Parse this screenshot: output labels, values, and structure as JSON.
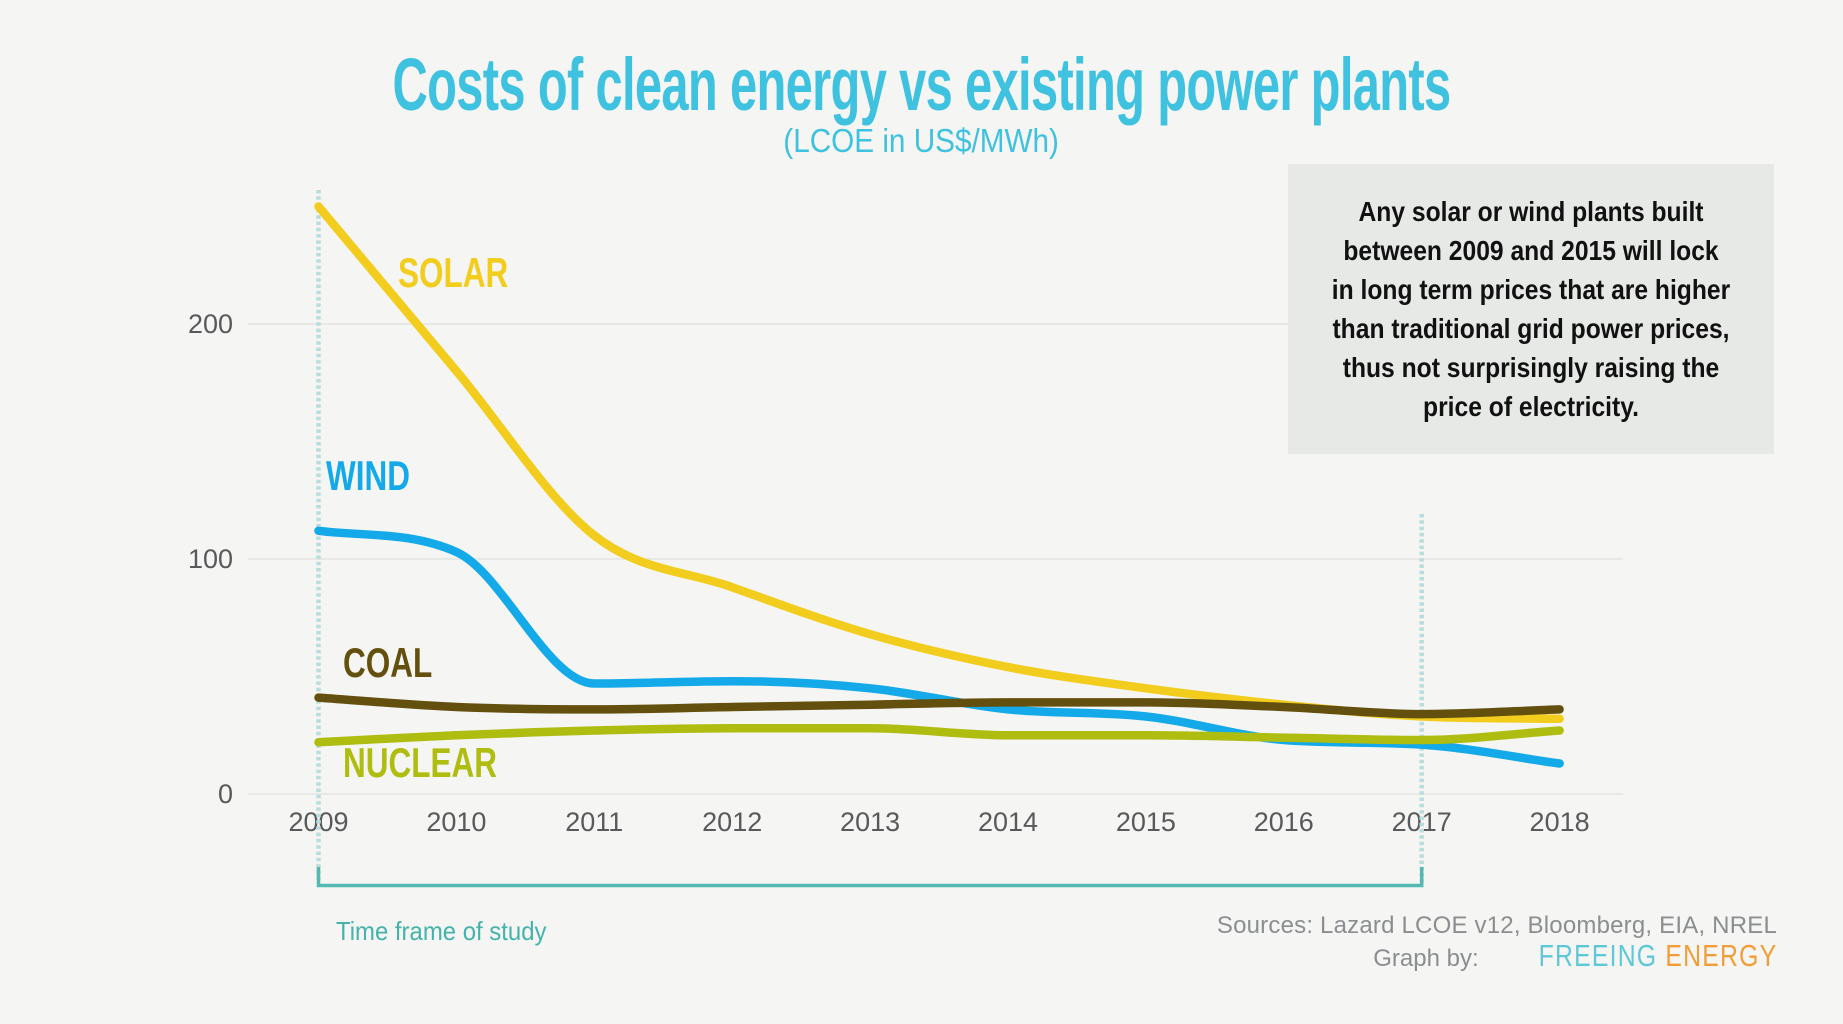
{
  "page": {
    "background": "#f5f5f3"
  },
  "header": {
    "title": "Costs of clean energy vs existing power plants",
    "subtitle": "(LCOE in US$/MWh)",
    "title_color": "#3fc1e0"
  },
  "annotation_box": {
    "background": "#e7e9e7",
    "text": "Any solar or wind plants built\nbetween 2009 and 2015 will lock\nin long term prices that are higher\nthan traditional grid power prices,\nthus not surprisingly raising the\nprice of electricity."
  },
  "footer": {
    "sources": "Sources: Lazard LCOE v12, Bloomberg, EIA, NREL",
    "graph_by": "Graph by:",
    "brand_word1": "FREEING",
    "brand_word1_color": "#5ec8d8",
    "brand_word2": "ENERGY",
    "brand_word2_color": "#f39d38"
  },
  "chart_data": {
    "type": "line",
    "title": "Costs of clean energy vs existing power plants",
    "subtitle": "(LCOE in US$/MWh)",
    "x": [
      2009,
      2010,
      2011,
      2012,
      2013,
      2014,
      2015,
      2016,
      2017,
      2018
    ],
    "series": [
      {
        "name": "SOLAR",
        "color": "#f2cd1d",
        "values": [
          250,
          180,
          110,
          88,
          68,
          54,
          45,
          38,
          33,
          32
        ]
      },
      {
        "name": "WIND",
        "color": "#14a9e8",
        "values": [
          112,
          103,
          47,
          48,
          45,
          36,
          33,
          23,
          21,
          13
        ]
      },
      {
        "name": "COAL",
        "color": "#64500e",
        "values": [
          41,
          37,
          36,
          37,
          38,
          39,
          39,
          37,
          34,
          36
        ]
      },
      {
        "name": "NUCLEAR",
        "color": "#aebd0f",
        "values": [
          22,
          25,
          27,
          28,
          28,
          25,
          25,
          24,
          23,
          27
        ]
      }
    ],
    "y_ticks": [
      0,
      100,
      200
    ],
    "ylim": [
      0,
      260
    ],
    "grid": "horizontal gridlines at 0, 100, 200",
    "legend_position": "inline labels next to lines",
    "axis_label_color": "#58595b",
    "gridline_color": "#e4e4e2",
    "annotations": {
      "study_start": 2009,
      "study_end": 2017,
      "dotted_line_color": "#b7dedc",
      "bracket_color": "#55b9b3",
      "timeframe_label": "Time frame of study",
      "timeframe_label_color": "#44b3ac"
    }
  }
}
